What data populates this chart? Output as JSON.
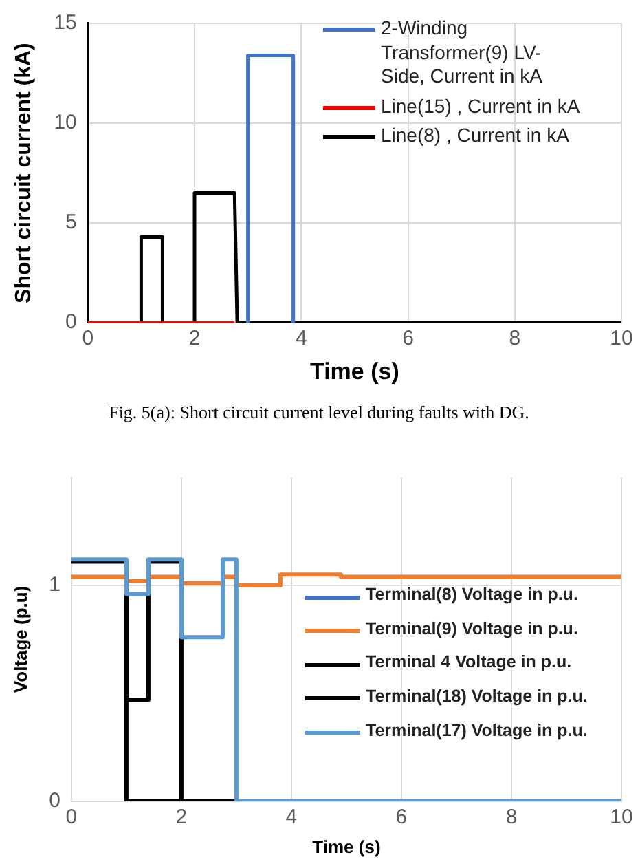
{
  "chart_data": [
    {
      "type": "line",
      "xlabel": "Time (s)",
      "ylabel": "Short circuit current (kA)",
      "xlim": [
        0,
        10
      ],
      "xticks": [
        0,
        2,
        4,
        6,
        8,
        10
      ],
      "ylim": [
        0,
        15
      ],
      "yticks": [
        0,
        5,
        10,
        15
      ],
      "grid": true,
      "legend": "top right",
      "marker": "none",
      "annotations": [
        "Fig. 5(a): Short circuit current level during faults with DG."
      ],
      "series": [
        {
          "name": "2-Winding Transformer(9) LV-Side, Current in kA",
          "color": "#4472c4",
          "x": [
            3,
            3,
            3.85,
            3.85
          ],
          "values": [
            0,
            13.4,
            13.4,
            0
          ]
        },
        {
          "name": "Line(15) , Current in kA",
          "color": "#ff0000",
          "x": [
            0,
            2.75
          ],
          "values": [
            0,
            0
          ]
        },
        {
          "name": "Line(8) , Current in kA",
          "color": "#000000",
          "x": [
            0,
            1,
            1,
            1.4,
            1.4,
            2,
            2,
            2.75,
            2.8,
            10
          ],
          "values": [
            0,
            0,
            4.3,
            4.3,
            0,
            0,
            6.5,
            6.5,
            0,
            0
          ]
        }
      ]
    },
    {
      "type": "line",
      "xlabel": "Time (s)",
      "ylabel": "Voltage (p.u)",
      "xlim": [
        0,
        10
      ],
      "xticks": [
        0,
        2,
        4,
        6,
        8,
        10
      ],
      "ylim": [
        0,
        1.5
      ],
      "yticks": [
        0,
        1
      ],
      "grid": true,
      "legend": "right",
      "marker": "none",
      "series": [
        {
          "name": "Terminal(8) Voltage in p.u.",
          "color": "#4472c4"
        },
        {
          "name": "Terminal(9) Voltage in p.u.",
          "color": "#ed7d31",
          "x": [
            0,
            1,
            1,
            1.4,
            1.4,
            2,
            2,
            2.75,
            2.75,
            3,
            3,
            3.8,
            3.8,
            4.9,
            4.9,
            10
          ],
          "values": [
            1.04,
            1.04,
            1.02,
            1.02,
            1.04,
            1.04,
            1.01,
            1.01,
            1.04,
            1.04,
            1.0,
            1.0,
            1.05,
            1.05,
            1.04,
            1.04
          ]
        },
        {
          "name": "Terminal 4 Voltage in p.u.",
          "color": "#000000",
          "x": [
            0,
            1,
            1,
            1.4,
            1.4,
            2,
            2
          ],
          "values": [
            1.11,
            1.11,
            0.47,
            0.47,
            1.11,
            1.11,
            0
          ]
        },
        {
          "name": "Terminal(18) Voltage in p.u.",
          "color": "#000000",
          "x": [
            1,
            1,
            3
          ],
          "values": [
            0.96,
            0,
            0
          ]
        },
        {
          "name": "Terminal(17) Voltage in p.u.",
          "color": "#5b9bd5",
          "x": [
            0,
            1,
            1,
            1.4,
            1.4,
            2,
            2,
            2.75,
            2.75,
            3,
            3,
            10
          ],
          "values": [
            1.12,
            1.12,
            0.96,
            0.96,
            1.12,
            1.12,
            0.76,
            0.76,
            1.12,
            1.12,
            0,
            0
          ]
        }
      ]
    }
  ]
}
